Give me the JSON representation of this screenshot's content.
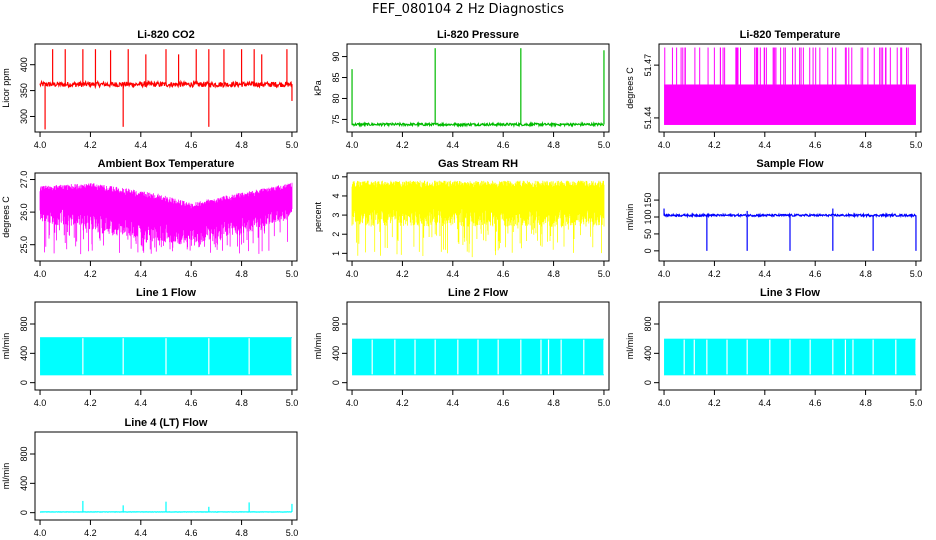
{
  "page": {
    "title": "FEF_080104  2 Hz Diagnostics"
  },
  "chart_data": [
    {
      "id": "co2",
      "type": "line",
      "style": "spiky",
      "title": "Li-820 CO2",
      "xlabel": "",
      "ylabel": "Licor ppm",
      "color": "#ff0000",
      "xlim": [
        3.98,
        5.02
      ],
      "ylim": [
        270,
        440
      ],
      "xticks": [
        4.0,
        4.2,
        4.4,
        4.6,
        4.8,
        5.0
      ],
      "xtick_labels": [
        "4.0",
        "4.2",
        "4.4",
        "4.6",
        "4.8",
        "5.0"
      ],
      "yticks": [
        300,
        350,
        400
      ],
      "ytick_labels": [
        "300",
        "350",
        "400"
      ],
      "baseline": 362,
      "noise": 5,
      "spikes": [
        {
          "x": 4.02,
          "y": 275
        },
        {
          "x": 4.05,
          "y": 430
        },
        {
          "x": 4.1,
          "y": 430
        },
        {
          "x": 4.17,
          "y": 430
        },
        {
          "x": 4.22,
          "y": 430
        },
        {
          "x": 4.28,
          "y": 428
        },
        {
          "x": 4.33,
          "y": 280
        },
        {
          "x": 4.35,
          "y": 430
        },
        {
          "x": 4.42,
          "y": 420
        },
        {
          "x": 4.5,
          "y": 430
        },
        {
          "x": 4.55,
          "y": 420
        },
        {
          "x": 4.62,
          "y": 430
        },
        {
          "x": 4.67,
          "y": 430
        },
        {
          "x": 4.67,
          "y": 280
        },
        {
          "x": 4.73,
          "y": 430
        },
        {
          "x": 4.8,
          "y": 430
        },
        {
          "x": 4.85,
          "y": 430
        },
        {
          "x": 4.88,
          "y": 420
        },
        {
          "x": 4.98,
          "y": 430
        },
        {
          "x": 5.0,
          "y": 330
        }
      ]
    },
    {
      "id": "pressure",
      "type": "line",
      "style": "spiky",
      "title": "Li-820 Pressure",
      "xlabel": "",
      "ylabel": "kPa",
      "color": "#00bb00",
      "xlim": [
        3.98,
        5.02
      ],
      "ylim": [
        72,
        93
      ],
      "xticks": [
        4.0,
        4.2,
        4.4,
        4.6,
        4.8,
        5.0
      ],
      "xtick_labels": [
        "4.0",
        "4.2",
        "4.4",
        "4.6",
        "4.8",
        "5.0"
      ],
      "yticks": [
        75,
        80,
        85,
        90
      ],
      "ytick_labels": [
        "75",
        "80",
        "85",
        "90"
      ],
      "baseline": 73.8,
      "noise": 0.3,
      "spikes": [
        {
          "x": 4.0,
          "y": 87
        },
        {
          "x": 4.33,
          "y": 92
        },
        {
          "x": 4.67,
          "y": 92
        },
        {
          "x": 5.0,
          "y": 91.5
        }
      ]
    },
    {
      "id": "temperature",
      "type": "area",
      "style": "fill-spiky",
      "title": "Li-820 Temperature",
      "xlabel": "",
      "ylabel": "degrees C",
      "color": "#ff00ff",
      "xlim": [
        3.98,
        5.02
      ],
      "ylim": [
        51.432,
        51.482
      ],
      "xticks": [
        4.0,
        4.2,
        4.4,
        4.6,
        4.8,
        5.0
      ],
      "xtick_labels": [
        "4.0",
        "4.2",
        "4.4",
        "4.6",
        "4.8",
        "5.0"
      ],
      "yticks": [
        51.44,
        51.47
      ],
      "ytick_labels": [
        "51.44",
        "51.47"
      ],
      "band": [
        51.436,
        51.459
      ],
      "spike_top": 51.48,
      "spike_count": 70
    },
    {
      "id": "box-temp",
      "type": "area",
      "style": "noise",
      "title": "Ambient Box Temperature",
      "xlabel": "",
      "ylabel": "degrees C",
      "color": "#ff00ff",
      "xlim": [
        3.98,
        5.02
      ],
      "ylim": [
        24.5,
        27.2
      ],
      "xticks": [
        4.0,
        4.2,
        4.4,
        4.6,
        4.8,
        5.0
      ],
      "xtick_labels": [
        "4.0",
        "4.2",
        "4.4",
        "4.6",
        "4.8",
        "5.0"
      ],
      "yticks": [
        25,
        26,
        27
      ],
      "ytick_labels": [
        "25.0",
        "26.0",
        "27.0"
      ],
      "upper": [
        [
          4.0,
          26.8
        ],
        [
          4.2,
          26.9
        ],
        [
          4.45,
          26.6
        ],
        [
          4.6,
          26.3
        ],
        [
          4.8,
          26.6
        ],
        [
          5.0,
          26.9
        ]
      ],
      "lower": [
        [
          4.0,
          25.7
        ],
        [
          4.2,
          25.4
        ],
        [
          4.45,
          25.1
        ],
        [
          4.6,
          25.0
        ],
        [
          4.8,
          25.3
        ],
        [
          5.0,
          25.8
        ]
      ],
      "dips_to": 24.7
    },
    {
      "id": "rh",
      "type": "area",
      "style": "noise",
      "title": "Gas Stream RH",
      "xlabel": "",
      "ylabel": "percent",
      "color": "#ffff00",
      "xlim": [
        3.98,
        5.02
      ],
      "ylim": [
        0.6,
        5.2
      ],
      "xticks": [
        4.0,
        4.2,
        4.4,
        4.6,
        4.8,
        5.0
      ],
      "xtick_labels": [
        "4.0",
        "4.2",
        "4.4",
        "4.6",
        "4.8",
        "5.0"
      ],
      "yticks": [
        1,
        2,
        3,
        4,
        5
      ],
      "ytick_labels": [
        "1",
        "2",
        "3",
        "4",
        "5"
      ],
      "upper": [
        [
          4.0,
          4.8
        ],
        [
          5.0,
          4.8
        ]
      ],
      "lower": [
        [
          4.0,
          2.4
        ],
        [
          5.0,
          2.4
        ]
      ],
      "dips_to": 0.8
    },
    {
      "id": "sample-flow",
      "type": "line",
      "style": "spiky",
      "title": "Sample Flow",
      "xlabel": "",
      "ylabel": "ml/min",
      "color": "#0000ff",
      "xlim": [
        3.98,
        5.02
      ],
      "ylim": [
        -30,
        230
      ],
      "xticks": [
        4.0,
        4.2,
        4.4,
        4.6,
        4.8,
        5.0
      ],
      "xtick_labels": [
        "4.0",
        "4.2",
        "4.4",
        "4.6",
        "4.8",
        "5.0"
      ],
      "yticks": [
        0,
        50,
        100,
        150
      ],
      "ytick_labels": [
        "0",
        "50",
        "100",
        "150"
      ],
      "baseline": 105,
      "noise": 3,
      "spikes": [
        {
          "x": 4.0,
          "y": 125
        },
        {
          "x": 4.17,
          "y": 0
        },
        {
          "x": 4.33,
          "y": 0
        },
        {
          "x": 4.33,
          "y": 118
        },
        {
          "x": 4.5,
          "y": 0
        },
        {
          "x": 4.67,
          "y": 0
        },
        {
          "x": 4.67,
          "y": 125
        },
        {
          "x": 4.83,
          "y": 0
        },
        {
          "x": 5.0,
          "y": 0
        }
      ]
    },
    {
      "id": "line1-flow",
      "type": "area",
      "style": "band-gaps",
      "title": "Line 1 Flow",
      "xlabel": "",
      "ylabel": "ml/min",
      "color": "#00ffff",
      "xlim": [
        3.98,
        5.02
      ],
      "ylim": [
        -100,
        1100
      ],
      "xticks": [
        4.0,
        4.2,
        4.4,
        4.6,
        4.8,
        5.0
      ],
      "xtick_labels": [
        "4.0",
        "4.2",
        "4.4",
        "4.6",
        "4.8",
        "5.0"
      ],
      "yticks": [
        0,
        400,
        800
      ],
      "ytick_labels": [
        "0",
        "400",
        "800"
      ],
      "band": [
        100,
        620
      ],
      "gaps": [
        4.17,
        4.33,
        4.5,
        4.67,
        4.83,
        5.0
      ]
    },
    {
      "id": "line2-flow",
      "type": "area",
      "style": "band-gaps",
      "title": "Line 2 Flow",
      "xlabel": "",
      "ylabel": "ml/min",
      "color": "#00ffff",
      "xlim": [
        3.98,
        5.02
      ],
      "ylim": [
        -100,
        1100
      ],
      "xticks": [
        4.0,
        4.2,
        4.4,
        4.6,
        4.8,
        5.0
      ],
      "xtick_labels": [
        "4.0",
        "4.2",
        "4.4",
        "4.6",
        "4.8",
        "5.0"
      ],
      "yticks": [
        0,
        400,
        800
      ],
      "ytick_labels": [
        "0",
        "400",
        "800"
      ],
      "band": [
        100,
        600
      ],
      "gaps": [
        4.08,
        4.17,
        4.25,
        4.33,
        4.42,
        4.5,
        4.58,
        4.67,
        4.75,
        4.78,
        4.83,
        4.92,
        5.0
      ]
    },
    {
      "id": "line3-flow",
      "type": "area",
      "style": "band-gaps",
      "title": "Line 3 Flow",
      "xlabel": "",
      "ylabel": "ml/min",
      "color": "#00ffff",
      "xlim": [
        3.98,
        5.02
      ],
      "ylim": [
        -100,
        1100
      ],
      "xticks": [
        4.0,
        4.2,
        4.4,
        4.6,
        4.8,
        5.0
      ],
      "xtick_labels": [
        "4.0",
        "4.2",
        "4.4",
        "4.6",
        "4.8",
        "5.0"
      ],
      "yticks": [
        0,
        400,
        800
      ],
      "ytick_labels": [
        "0",
        "400",
        "800"
      ],
      "band": [
        100,
        600
      ],
      "gaps": [
        4.08,
        4.12,
        4.17,
        4.25,
        4.33,
        4.42,
        4.5,
        4.58,
        4.67,
        4.72,
        4.75,
        4.83,
        4.92,
        5.0
      ]
    },
    {
      "id": "line4-flow",
      "type": "line",
      "style": "spiky",
      "title": "Line 4 (LT) Flow",
      "xlabel": "",
      "ylabel": "ml/min",
      "color": "#00ffff",
      "xlim": [
        3.98,
        5.02
      ],
      "ylim": [
        -100,
        1100
      ],
      "xticks": [
        4.0,
        4.2,
        4.4,
        4.6,
        4.8,
        5.0
      ],
      "xtick_labels": [
        "4.0",
        "4.2",
        "4.4",
        "4.6",
        "4.8",
        "5.0"
      ],
      "yticks": [
        0,
        400,
        800
      ],
      "ytick_labels": [
        "0",
        "400",
        "800"
      ],
      "baseline": 10,
      "noise": 2,
      "spikes": [
        {
          "x": 4.17,
          "y": 160
        },
        {
          "x": 4.33,
          "y": 100
        },
        {
          "x": 4.5,
          "y": 150
        },
        {
          "x": 4.67,
          "y": 80
        },
        {
          "x": 4.83,
          "y": 140
        },
        {
          "x": 5.0,
          "y": 120
        }
      ]
    }
  ]
}
